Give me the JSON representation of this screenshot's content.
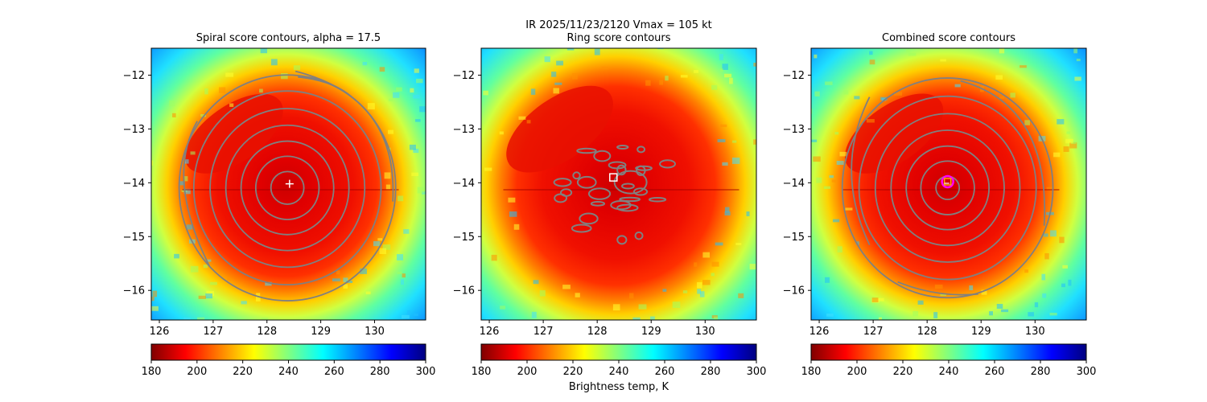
{
  "figure": {
    "suptitle_line1": "IR  2025/11/23/2120    Vmax = 105 kt",
    "colorbar_label": "Brightness temp, K"
  },
  "colors": {
    "contour": "#808080",
    "center_marker": "#ffffff",
    "ring_marker": "#ff00ff",
    "combined_square": "#ffa500",
    "colormap": [
      "#800000",
      "#ff0000",
      "#ff8000",
      "#ffff00",
      "#80ff80",
      "#00ffff",
      "#0080ff",
      "#0000ff",
      "#000080"
    ]
  },
  "chart_data": [
    {
      "type": "heatmap",
      "title": "Spiral score contours, alpha = 17.5",
      "x_ticks": [
        "126",
        "127",
        "128",
        "129",
        "130"
      ],
      "y_ticks": [
        "−12",
        "−13",
        "−14",
        "−15",
        "−16"
      ],
      "xlim": [
        125.85,
        130.95
      ],
      "ylim": [
        -16.55,
        -11.5
      ],
      "storm_center": [
        128.35,
        -14.05
      ],
      "cdo_radius_deg": 1.75,
      "colorbar": {
        "range": [
          180,
          300
        ],
        "ticks": [
          "180",
          "200",
          "220",
          "240",
          "260",
          "280",
          "300"
        ]
      },
      "contours": "spiral",
      "marker": {
        "symbol": "plus",
        "x": 128.42,
        "y": -14.02
      }
    },
    {
      "type": "heatmap",
      "title": "Ring score contours",
      "x_ticks": [
        "126",
        "127",
        "128",
        "129",
        "130"
      ],
      "y_ticks": [
        "−12",
        "−13",
        "−14",
        "−15",
        "−16"
      ],
      "xlim": [
        125.85,
        130.95
      ],
      "ylim": [
        -16.55,
        -11.5
      ],
      "storm_center": [
        128.35,
        -14.05
      ],
      "cdo_radius_deg": 1.9,
      "colorbar": {
        "range": [
          180,
          300
        ],
        "ticks": [
          "180",
          "200",
          "220",
          "240",
          "260",
          "280",
          "300"
        ]
      },
      "contours": "ring",
      "marker": {
        "symbol": "square",
        "x": 128.3,
        "y": -13.9
      }
    },
    {
      "type": "heatmap",
      "title": "Combined score contours",
      "x_ticks": [
        "126",
        "127",
        "128",
        "129",
        "130"
      ],
      "y_ticks": [
        "−12",
        "−13",
        "−14",
        "−15",
        "−16"
      ],
      "xlim": [
        125.85,
        130.95
      ],
      "ylim": [
        -16.55,
        -11.5
      ],
      "storm_center": [
        128.35,
        -14.05
      ],
      "cdo_radius_deg": 1.75,
      "colorbar": {
        "range": [
          180,
          300
        ],
        "ticks": [
          "180",
          "200",
          "220",
          "240",
          "260",
          "280",
          "300"
        ]
      },
      "contours": "combined",
      "marker": {
        "symbol": "ring-square",
        "x": 128.38,
        "y": -13.98
      }
    }
  ]
}
